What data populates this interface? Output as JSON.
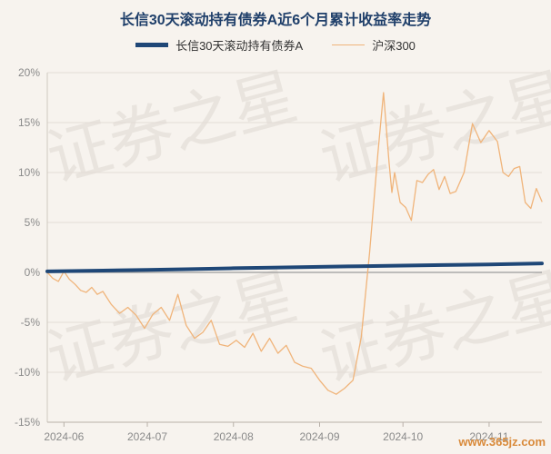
{
  "chart_data": {
    "type": "line",
    "title": "长信30天滚动持有债券A近6个月累计收益率走势",
    "xlabel": "",
    "ylabel": "",
    "xlim": [
      "2024-05-26",
      "2024-11-20"
    ],
    "ylim": [
      -15,
      20
    ],
    "yticks": [
      "20%",
      "15%",
      "10%",
      "5%",
      "0%",
      "-5%",
      "-10%",
      "-15%"
    ],
    "yticks_values": [
      20,
      15,
      10,
      5,
      0,
      -5,
      -10,
      -15
    ],
    "xticks": [
      "2024-06",
      "2024-07",
      "2024-08",
      "2024-09",
      "2024-10",
      "2024-11"
    ],
    "xticks_values": [
      "2024-06-01",
      "2024-07-01",
      "2024-08-01",
      "2024-09-01",
      "2024-10-01",
      "2024-11-01"
    ],
    "grid": true,
    "legend": "top",
    "series": [
      {
        "name": "长信30天滚动持有债券A",
        "color": "#1f4777",
        "x": [
          "2024-05-26",
          "2024-06-15",
          "2024-07-01",
          "2024-07-15",
          "2024-08-01",
          "2024-08-15",
          "2024-09-01",
          "2024-09-15",
          "2024-10-01",
          "2024-10-15",
          "2024-11-01",
          "2024-11-20"
        ],
        "values": [
          0.1,
          0.18,
          0.25,
          0.32,
          0.42,
          0.48,
          0.55,
          0.62,
          0.68,
          0.74,
          0.8,
          0.9
        ]
      },
      {
        "name": "沪深300",
        "color": "#f0b47a",
        "x": [
          "2024-05-26",
          "2024-05-28",
          "2024-05-30",
          "2024-06-01",
          "2024-06-03",
          "2024-06-05",
          "2024-06-07",
          "2024-06-09",
          "2024-06-11",
          "2024-06-13",
          "2024-06-15",
          "2024-06-18",
          "2024-06-21",
          "2024-06-24",
          "2024-06-27",
          "2024-06-30",
          "2024-07-03",
          "2024-07-06",
          "2024-07-09",
          "2024-07-12",
          "2024-07-15",
          "2024-07-18",
          "2024-07-21",
          "2024-07-24",
          "2024-07-27",
          "2024-07-30",
          "2024-08-02",
          "2024-08-05",
          "2024-08-08",
          "2024-08-11",
          "2024-08-14",
          "2024-08-17",
          "2024-08-20",
          "2024-08-23",
          "2024-08-26",
          "2024-08-29",
          "2024-09-01",
          "2024-09-04",
          "2024-09-07",
          "2024-09-10",
          "2024-09-13",
          "2024-09-16",
          "2024-09-19",
          "2024-09-22",
          "2024-09-24",
          "2024-09-26",
          "2024-09-27",
          "2024-09-28",
          "2024-09-30",
          "2024-10-02",
          "2024-10-04",
          "2024-10-06",
          "2024-10-08",
          "2024-10-10",
          "2024-10-12",
          "2024-10-14",
          "2024-10-16",
          "2024-10-18",
          "2024-10-20",
          "2024-10-23",
          "2024-10-26",
          "2024-10-29",
          "2024-11-01",
          "2024-11-04",
          "2024-11-06",
          "2024-11-08",
          "2024-11-10",
          "2024-11-12",
          "2024-11-14",
          "2024-11-16",
          "2024-11-18",
          "2024-11-20"
        ],
        "values": [
          0.0,
          -0.6,
          -0.9,
          0.1,
          -0.7,
          -1.2,
          -1.8,
          -2.0,
          -1.5,
          -2.2,
          -1.9,
          -3.2,
          -4.1,
          -3.5,
          -4.3,
          -5.6,
          -4.2,
          -3.5,
          -4.8,
          -2.2,
          -5.3,
          -6.6,
          -6.0,
          -4.8,
          -7.2,
          -7.4,
          -6.8,
          -7.5,
          -6.1,
          -7.9,
          -6.6,
          -8.1,
          -7.3,
          -9.0,
          -9.4,
          -9.6,
          -10.8,
          -11.8,
          -12.2,
          -11.6,
          -10.8,
          -6.5,
          2.0,
          12.0,
          18.0,
          11.0,
          8.0,
          10.0,
          7.0,
          6.5,
          5.2,
          9.2,
          9.0,
          9.8,
          10.3,
          8.3,
          9.6,
          7.9,
          8.1,
          10.0,
          14.9,
          13.0,
          14.2,
          13.1,
          10.0,
          9.6,
          10.4,
          10.6,
          7.0,
          6.4,
          8.4,
          7.1
        ]
      }
    ]
  },
  "watermark": {
    "text": "证券之星",
    "site": "www.365jz.com"
  }
}
